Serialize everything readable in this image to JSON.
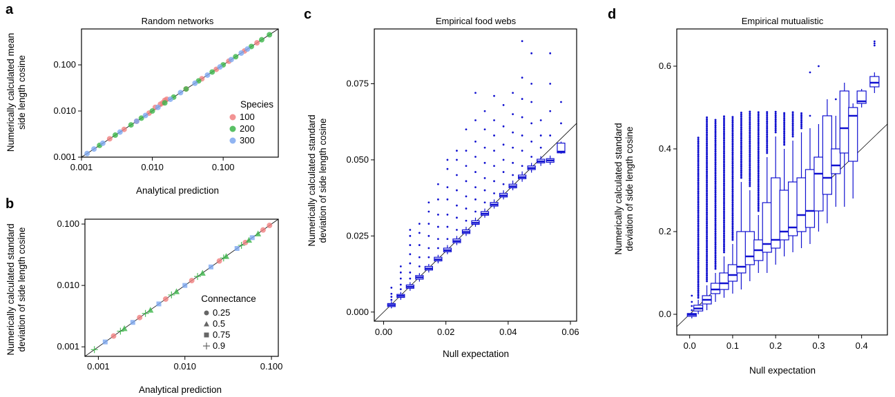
{
  "panels": {
    "a": {
      "letter": "a",
      "title": "Random networks",
      "xlabel": "Analytical prediction",
      "ylabel_line1": "Numerically calculated mean",
      "ylabel_line2": "side length cosine"
    },
    "b": {
      "letter": "b",
      "title": "",
      "xlabel": "Analytical prediction",
      "ylabel_line1": "Numerically calculated standard",
      "ylabel_line2": "deviation of side length cosine"
    },
    "c": {
      "letter": "c",
      "title": "Empirical food webs",
      "xlabel": "Null expectation",
      "ylabel_line1": "Numerically calculated standard",
      "ylabel_line2": "deviation of side length cosine"
    },
    "d": {
      "letter": "d",
      "title": "Empirical mutualistic",
      "xlabel": "Null expectation",
      "ylabel_line1": "Numerically calculated standard",
      "ylabel_line2": "deviation of side length cosine"
    }
  },
  "colors": {
    "species_100": "#f08080",
    "species_200": "#3cb54a",
    "species_300": "#7da7f0",
    "box": "#1010d0"
  },
  "chart_data": [
    {
      "panel": "a",
      "type": "scatter",
      "title": "Random networks",
      "xlabel": "Analytical prediction",
      "ylabel": "Numerically calculated mean side length cosine",
      "xscale": "log",
      "yscale": "log",
      "xlim": [
        0.001,
        0.6
      ],
      "ylim": [
        0.001,
        0.6
      ],
      "xticks": [
        "0.001",
        "0.010",
        "0.100"
      ],
      "yticks": [
        "0.001",
        "0.010",
        "0.100"
      ],
      "identity_line": true,
      "legend": {
        "title": "Species",
        "position": "right",
        "entries": [
          "100",
          "200",
          "300"
        ]
      },
      "series": [
        {
          "name": "100",
          "x": [
            0.0025,
            0.004,
            0.006,
            0.009,
            0.011,
            0.013,
            0.014,
            0.015,
            0.016,
            0.03,
            0.05,
            0.08,
            0.12,
            0.2,
            0.3
          ],
          "y": [
            0.0025,
            0.004,
            0.006,
            0.009,
            0.012,
            0.014,
            0.015,
            0.017,
            0.018,
            0.03,
            0.05,
            0.08,
            0.12,
            0.2,
            0.3
          ]
        },
        {
          "name": "200",
          "x": [
            0.0018,
            0.003,
            0.005,
            0.007,
            0.01,
            0.015,
            0.02,
            0.03,
            0.045,
            0.07,
            0.1,
            0.15,
            0.25,
            0.35,
            0.45
          ],
          "y": [
            0.0018,
            0.003,
            0.005,
            0.007,
            0.01,
            0.015,
            0.02,
            0.03,
            0.045,
            0.07,
            0.1,
            0.15,
            0.25,
            0.35,
            0.45
          ]
        },
        {
          "name": "300",
          "x": [
            0.0012,
            0.0015,
            0.002,
            0.0035,
            0.006,
            0.008,
            0.012,
            0.018,
            0.025,
            0.04,
            0.06,
            0.09,
            0.13,
            0.18,
            0.22
          ],
          "y": [
            0.0012,
            0.0015,
            0.002,
            0.0035,
            0.006,
            0.008,
            0.012,
            0.018,
            0.025,
            0.04,
            0.06,
            0.09,
            0.13,
            0.18,
            0.22
          ]
        }
      ]
    },
    {
      "panel": "b",
      "type": "scatter",
      "title": "",
      "xlabel": "Analytical prediction",
      "ylabel": "Numerically calculated standard deviation of side length cosine",
      "xscale": "log",
      "yscale": "log",
      "xlim": [
        0.0007,
        0.12
      ],
      "ylim": [
        0.0007,
        0.12
      ],
      "xticks": [
        "0.001",
        "0.010",
        "0.100"
      ],
      "yticks": [
        "0.001",
        "0.010",
        "0.100"
      ],
      "identity_line": true,
      "legend": {
        "title": "Connectance",
        "position": "bottom-right",
        "entries": [
          "0.25",
          "0.5",
          "0.75",
          "0.9"
        ]
      },
      "series": [
        {
          "name": "0.25",
          "x": [
            0.0015,
            0.003,
            0.006,
            0.012,
            0.025,
            0.05,
            0.08,
            0.095
          ],
          "y": [
            0.0015,
            0.003,
            0.006,
            0.012,
            0.025,
            0.05,
            0.08,
            0.095
          ]
        },
        {
          "name": "0.5",
          "x": [
            0.002,
            0.004,
            0.008,
            0.016,
            0.03,
            0.055,
            0.07
          ],
          "y": [
            0.002,
            0.004,
            0.008,
            0.016,
            0.03,
            0.055,
            0.07
          ]
        },
        {
          "name": "0.75",
          "x": [
            0.0012,
            0.0025,
            0.005,
            0.01,
            0.02,
            0.04,
            0.06
          ],
          "y": [
            0.0012,
            0.0025,
            0.005,
            0.01,
            0.02,
            0.04,
            0.06
          ]
        },
        {
          "name": "0.9",
          "x": [
            0.0009,
            0.0018,
            0.0035,
            0.007,
            0.014,
            0.028,
            0.045
          ],
          "y": [
            0.0009,
            0.0018,
            0.0035,
            0.007,
            0.014,
            0.028,
            0.045
          ]
        }
      ]
    },
    {
      "panel": "c",
      "type": "box",
      "title": "Empirical food webs",
      "xlabel": "Null expectation",
      "ylabel": "Numerically calculated standard deviation of side length cosine",
      "xlim": [
        -0.003,
        0.062
      ],
      "ylim": [
        -0.003,
        0.093
      ],
      "xticks": [
        0.0,
        0.02,
        0.04,
        0.06
      ],
      "xtick_labels": [
        "0.00",
        "0.02",
        "0.04",
        "0.06"
      ],
      "yticks": [
        0.0,
        0.025,
        0.05,
        0.075
      ],
      "ytick_labels": [
        "0.000",
        "0.025",
        "0.050",
        "0.075"
      ],
      "identity_line": true,
      "x_centers": [
        0.0025,
        0.0055,
        0.0085,
        0.0115,
        0.0145,
        0.0175,
        0.0205,
        0.0235,
        0.0265,
        0.0295,
        0.0325,
        0.0355,
        0.0385,
        0.0415,
        0.0445,
        0.0475,
        0.0505,
        0.0535,
        0.057
      ],
      "boxes": [
        {
          "q1": 0.0018,
          "med": 0.0023,
          "q3": 0.0028,
          "lo": 0.0012,
          "hi": 0.0035,
          "out": [
            0.004,
            0.005,
            0.006,
            0.008
          ]
        },
        {
          "q1": 0.0048,
          "med": 0.0053,
          "q3": 0.0058,
          "lo": 0.004,
          "hi": 0.0066,
          "out": [
            0.0075,
            0.009,
            0.011,
            0.013,
            0.015
          ]
        },
        {
          "q1": 0.0078,
          "med": 0.0083,
          "q3": 0.0089,
          "lo": 0.007,
          "hi": 0.0098,
          "out": [
            0.011,
            0.013,
            0.016,
            0.019,
            0.022,
            0.025,
            0.027
          ]
        },
        {
          "q1": 0.0108,
          "med": 0.0114,
          "q3": 0.012,
          "lo": 0.01,
          "hi": 0.0128,
          "out": [
            0.015,
            0.018,
            0.022,
            0.026,
            0.029
          ]
        },
        {
          "q1": 0.0138,
          "med": 0.0143,
          "q3": 0.015,
          "lo": 0.013,
          "hi": 0.0158,
          "out": [
            0.018,
            0.021,
            0.025,
            0.029,
            0.033,
            0.036
          ]
        },
        {
          "q1": 0.0168,
          "med": 0.0173,
          "q3": 0.018,
          "lo": 0.016,
          "hi": 0.0188,
          "out": [
            0.021,
            0.024,
            0.028,
            0.032,
            0.037,
            0.042
          ]
        },
        {
          "q1": 0.0198,
          "med": 0.0203,
          "q3": 0.021,
          "lo": 0.019,
          "hi": 0.022,
          "out": [
            0.024,
            0.028,
            0.032,
            0.037,
            0.041,
            0.047,
            0.05
          ]
        },
        {
          "q1": 0.0228,
          "med": 0.0233,
          "q3": 0.024,
          "lo": 0.022,
          "hi": 0.025,
          "out": [
            0.027,
            0.031,
            0.035,
            0.04,
            0.045,
            0.05,
            0.053
          ]
        },
        {
          "q1": 0.0258,
          "med": 0.0263,
          "q3": 0.027,
          "lo": 0.025,
          "hi": 0.028,
          "out": [
            0.03,
            0.034,
            0.038,
            0.043,
            0.048,
            0.053,
            0.06
          ]
        },
        {
          "q1": 0.0288,
          "med": 0.0293,
          "q3": 0.03,
          "lo": 0.028,
          "hi": 0.031,
          "out": [
            0.033,
            0.037,
            0.041,
            0.046,
            0.051,
            0.056,
            0.063,
            0.072
          ]
        },
        {
          "q1": 0.0318,
          "med": 0.0323,
          "q3": 0.033,
          "lo": 0.031,
          "hi": 0.034,
          "out": [
            0.036,
            0.04,
            0.044,
            0.049,
            0.054,
            0.06,
            0.066
          ]
        },
        {
          "q1": 0.0348,
          "med": 0.0353,
          "q3": 0.036,
          "lo": 0.034,
          "hi": 0.037,
          "out": [
            0.039,
            0.043,
            0.048,
            0.053,
            0.058,
            0.063,
            0.071
          ]
        },
        {
          "q1": 0.0378,
          "med": 0.0383,
          "q3": 0.039,
          "lo": 0.037,
          "hi": 0.04,
          "out": [
            0.042,
            0.046,
            0.05,
            0.055,
            0.061,
            0.068
          ]
        },
        {
          "q1": 0.0408,
          "med": 0.0413,
          "q3": 0.042,
          "lo": 0.04,
          "hi": 0.0432,
          "out": [
            0.045,
            0.049,
            0.054,
            0.059,
            0.065,
            0.072
          ]
        },
        {
          "q1": 0.0438,
          "med": 0.0443,
          "q3": 0.045,
          "lo": 0.0428,
          "hi": 0.0462,
          "out": [
            0.048,
            0.053,
            0.058,
            0.064,
            0.07,
            0.077,
            0.089
          ]
        },
        {
          "q1": 0.0468,
          "med": 0.0473,
          "q3": 0.048,
          "lo": 0.0458,
          "hi": 0.049,
          "out": [
            0.051,
            0.056,
            0.062,
            0.069,
            0.075,
            0.085
          ]
        },
        {
          "q1": 0.049,
          "med": 0.0495,
          "q3": 0.0502,
          "lo": 0.048,
          "hi": 0.0512,
          "out": [
            0.054,
            0.058,
            0.063
          ]
        },
        {
          "q1": 0.0492,
          "med": 0.0498,
          "q3": 0.0504,
          "lo": 0.0484,
          "hi": 0.0514,
          "out": [
            0.058,
            0.066,
            0.075,
            0.085
          ]
        },
        {
          "q1": 0.0523,
          "med": 0.0527,
          "q3": 0.0555,
          "lo": 0.052,
          "hi": 0.056,
          "out": [
            0.062,
            0.069
          ]
        }
      ]
    },
    {
      "panel": "d",
      "type": "box",
      "title": "Empirical mutualistic",
      "xlabel": "Null expectation",
      "ylabel": "Numerically calculated standard deviation of side length cosine",
      "xlim": [
        -0.03,
        0.46
      ],
      "ylim": [
        -0.05,
        0.69
      ],
      "xticks": [
        0.0,
        0.1,
        0.2,
        0.3,
        0.4
      ],
      "xtick_labels": [
        "0.0",
        "0.1",
        "0.2",
        "0.3",
        "0.4"
      ],
      "yticks": [
        0.0,
        0.2,
        0.4,
        0.6
      ],
      "ytick_labels": [
        "0.0",
        "0.2",
        "0.4",
        "0.6"
      ],
      "identity_line": true,
      "x_centers": [
        0.005,
        0.02,
        0.04,
        0.06,
        0.08,
        0.1,
        0.12,
        0.14,
        0.16,
        0.18,
        0.2,
        0.22,
        0.24,
        0.26,
        0.28,
        0.3,
        0.32,
        0.34,
        0.36,
        0.38,
        0.4,
        0.43
      ],
      "boxes": [
        {
          "q1": -0.005,
          "med": -0.001,
          "q3": 0.002,
          "lo": -0.01,
          "hi": 0.005,
          "out": [
            0.01,
            0.02,
            0.03,
            0.045
          ]
        },
        {
          "q1": 0.008,
          "med": 0.014,
          "q3": 0.022,
          "lo": 0.0,
          "hi": 0.035,
          "out_range": [
            0.04,
            0.43
          ]
        },
        {
          "q1": 0.025,
          "med": 0.035,
          "q3": 0.045,
          "lo": 0.01,
          "hi": 0.07,
          "out_range": [
            0.08,
            0.48
          ]
        },
        {
          "q1": 0.05,
          "med": 0.06,
          "q3": 0.075,
          "lo": 0.03,
          "hi": 0.1,
          "out_range": [
            0.11,
            0.47
          ]
        },
        {
          "q1": 0.06,
          "med": 0.075,
          "q3": 0.1,
          "lo": 0.04,
          "hi": 0.14,
          "out_range": [
            0.15,
            0.48
          ]
        },
        {
          "q1": 0.08,
          "med": 0.095,
          "q3": 0.12,
          "lo": 0.05,
          "hi": 0.17,
          "out_range": [
            0.18,
            0.48
          ]
        },
        {
          "q1": 0.1,
          "med": 0.115,
          "q3": 0.2,
          "lo": 0.06,
          "hi": 0.32,
          "out_range": [
            0.33,
            0.49
          ]
        },
        {
          "q1": 0.12,
          "med": 0.14,
          "q3": 0.2,
          "lo": 0.08,
          "hi": 0.3,
          "out_range": [
            0.31,
            0.49
          ]
        },
        {
          "q1": 0.13,
          "med": 0.155,
          "q3": 0.18,
          "lo": 0.1,
          "hi": 0.24,
          "out_range": [
            0.25,
            0.49
          ]
        },
        {
          "q1": 0.15,
          "med": 0.17,
          "q3": 0.27,
          "lo": 0.1,
          "hi": 0.38,
          "out_range": [
            0.39,
            0.49
          ]
        },
        {
          "q1": 0.16,
          "med": 0.18,
          "q3": 0.33,
          "lo": 0.12,
          "hi": 0.43,
          "out_range": [
            0.44,
            0.49
          ]
        },
        {
          "q1": 0.18,
          "med": 0.2,
          "q3": 0.3,
          "lo": 0.14,
          "hi": 0.4,
          "out_range": [
            0.41,
            0.49
          ]
        },
        {
          "q1": 0.19,
          "med": 0.21,
          "q3": 0.32,
          "lo": 0.15,
          "hi": 0.42,
          "out_range": [
            0.43,
            0.49
          ]
        },
        {
          "q1": 0.2,
          "med": 0.24,
          "q3": 0.33,
          "lo": 0.16,
          "hi": 0.44,
          "out_range": [
            0.45,
            0.49
          ]
        },
        {
          "q1": 0.21,
          "med": 0.25,
          "q3": 0.35,
          "lo": 0.17,
          "hi": 0.45,
          "out": [
            0.48,
            0.585
          ]
        },
        {
          "q1": 0.25,
          "med": 0.34,
          "q3": 0.38,
          "lo": 0.2,
          "hi": 0.46,
          "out": [
            0.6
          ]
        },
        {
          "q1": 0.29,
          "med": 0.33,
          "q3": 0.48,
          "lo": 0.22,
          "hi": 0.52,
          "out": []
        },
        {
          "q1": 0.34,
          "med": 0.36,
          "q3": 0.4,
          "lo": 0.26,
          "hi": 0.48,
          "out": [
            0.52
          ]
        },
        {
          "q1": 0.39,
          "med": 0.45,
          "q3": 0.54,
          "lo": 0.26,
          "hi": 0.56,
          "out": []
        },
        {
          "q1": 0.37,
          "med": 0.48,
          "q3": 0.5,
          "lo": 0.28,
          "hi": 0.51,
          "out": []
        },
        {
          "q1": 0.51,
          "med": 0.515,
          "q3": 0.54,
          "lo": 0.5,
          "hi": 0.545,
          "out": []
        },
        {
          "q1": 0.55,
          "med": 0.56,
          "q3": 0.575,
          "lo": 0.535,
          "hi": 0.585,
          "out": [
            0.65,
            0.655,
            0.66
          ]
        }
      ]
    }
  ]
}
